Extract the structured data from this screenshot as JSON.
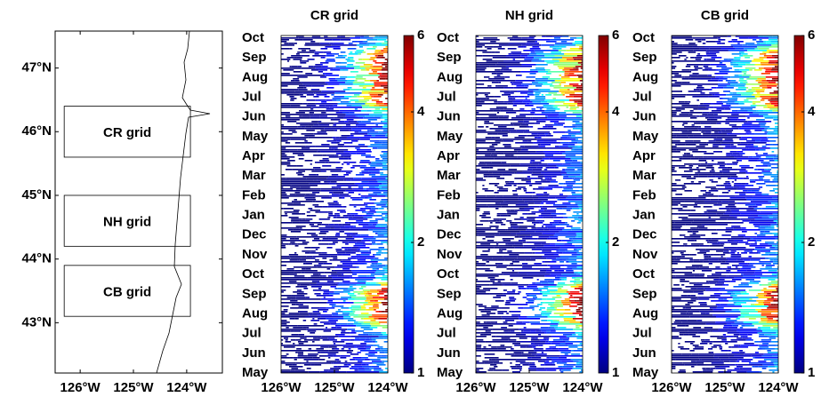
{
  "chart_data": [
    {
      "type": "map",
      "xlim": [
        -126.47,
        -123.33
      ],
      "ylim": [
        42.21,
        47.58
      ],
      "xticks": [
        {
          "value": -126,
          "label": "126°W"
        },
        {
          "value": -125,
          "label": "125°W"
        },
        {
          "value": -124,
          "label": "124°W"
        }
      ],
      "yticks": [
        {
          "value": 47,
          "label": "47°N"
        },
        {
          "value": 46,
          "label": "46°N"
        },
        {
          "value": 45,
          "label": "45°N"
        },
        {
          "value": 44,
          "label": "44°N"
        },
        {
          "value": 43,
          "label": "43°N"
        }
      ],
      "boxes": [
        {
          "label": "CR grid",
          "lon": [
            -126.3,
            -123.93
          ],
          "lat": [
            45.6,
            46.4
          ]
        },
        {
          "label": "NH grid",
          "lon": [
            -126.3,
            -123.93
          ],
          "lat": [
            44.2,
            45.0
          ]
        },
        {
          "label": "CB grid",
          "lon": [
            -126.3,
            -123.93
          ],
          "lat": [
            43.1,
            43.9
          ]
        }
      ]
    },
    {
      "type": "heatmap",
      "title": "CR grid",
      "categories": [
        "Oct",
        "Sep",
        "Aug",
        "Jul",
        "Jun",
        "May",
        "Apr",
        "Mar",
        "Feb",
        "Jan",
        "Dec",
        "Nov",
        "Oct",
        "Sep",
        "Aug",
        "Jul",
        "Jun",
        "May"
      ],
      "xlim": [
        -126,
        -124
      ],
      "xticks": [
        {
          "value": -126,
          "label": "126°W"
        },
        {
          "value": -125,
          "label": "125°W"
        },
        {
          "value": -124,
          "label": "124°W"
        }
      ],
      "colorbar": {
        "lim": [
          1,
          6
        ],
        "ticks": [
          1,
          2,
          4,
          6
        ],
        "log": true
      }
    },
    {
      "type": "heatmap",
      "title": "NH grid",
      "categories": [
        "Oct",
        "Sep",
        "Aug",
        "Jul",
        "Jun",
        "May",
        "Apr",
        "Mar",
        "Feb",
        "Jan",
        "Dec",
        "Nov",
        "Oct",
        "Sep",
        "Aug",
        "Jul",
        "Jun",
        "May"
      ],
      "xlim": [
        -126,
        -124
      ],
      "xticks": [
        {
          "value": -126,
          "label": "126°W"
        },
        {
          "value": -125,
          "label": "125°W"
        },
        {
          "value": -124,
          "label": "124°W"
        }
      ],
      "colorbar": {
        "lim": [
          1,
          6
        ],
        "ticks": [
          1,
          2,
          4,
          6
        ],
        "log": true
      }
    },
    {
      "type": "heatmap",
      "title": "CB grid",
      "categories": [
        "Oct",
        "Sep",
        "Aug",
        "Jul",
        "Jun",
        "May",
        "Apr",
        "Mar",
        "Feb",
        "Jan",
        "Dec",
        "Nov",
        "Oct",
        "Sep",
        "Aug",
        "Jul",
        "Jun",
        "May"
      ],
      "xlim": [
        -126,
        -124
      ],
      "xticks": [
        {
          "value": -126,
          "label": "126°W"
        },
        {
          "value": -125,
          "label": "125°W"
        },
        {
          "value": -124,
          "label": "124°W"
        }
      ],
      "colorbar": {
        "lim": [
          1,
          6
        ],
        "ticks": [
          1,
          2,
          4,
          6
        ],
        "log": true
      }
    }
  ]
}
